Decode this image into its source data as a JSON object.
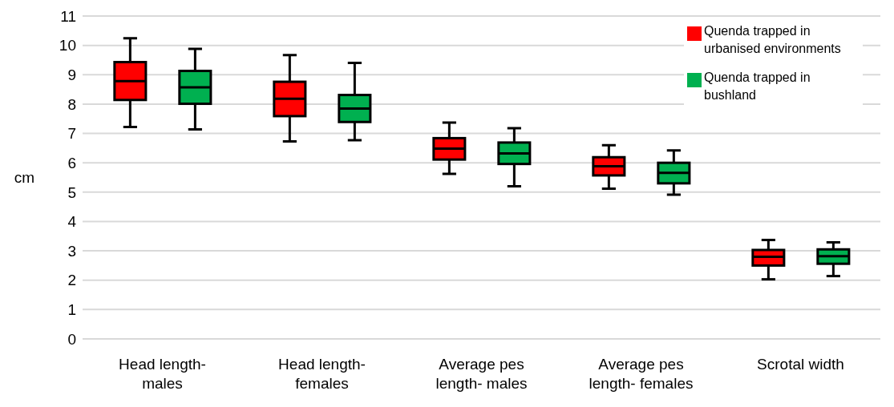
{
  "chart_data": {
    "type": "box",
    "ylabel": "cm",
    "categories": [
      "Head length- males",
      "Head length- females",
      "Average pes length- males",
      "Average pes length- females",
      "Scrotal width"
    ],
    "series": [
      {
        "name": "Quenda trapped in urbanised environments",
        "color": "#ff0000",
        "boxes": [
          {
            "low": 7.22,
            "q1": 8.14,
            "median": 8.78,
            "q3": 9.43,
            "high": 10.24
          },
          {
            "low": 6.73,
            "q1": 7.59,
            "median": 8.18,
            "q3": 8.76,
            "high": 9.67
          },
          {
            "low": 5.62,
            "q1": 6.11,
            "median": 6.48,
            "q3": 6.84,
            "high": 7.37
          },
          {
            "low": 5.12,
            "q1": 5.57,
            "median": 5.88,
            "q3": 6.19,
            "high": 6.6
          },
          {
            "low": 2.03,
            "q1": 2.5,
            "median": 2.8,
            "q3": 3.03,
            "high": 3.37
          }
        ]
      },
      {
        "name": "Quenda trapped in bushland",
        "color": "#00b050",
        "boxes": [
          {
            "low": 7.14,
            "q1": 8.01,
            "median": 8.57,
            "q3": 9.13,
            "high": 9.88
          },
          {
            "low": 6.77,
            "q1": 7.39,
            "median": 7.85,
            "q3": 8.31,
            "high": 9.4
          },
          {
            "low": 5.2,
            "q1": 5.96,
            "median": 6.32,
            "q3": 6.69,
            "high": 7.18
          },
          {
            "low": 4.91,
            "q1": 5.3,
            "median": 5.66,
            "q3": 6.0,
            "high": 6.42
          },
          {
            "low": 2.14,
            "q1": 2.56,
            "median": 2.82,
            "q3": 3.05,
            "high": 3.29
          }
        ]
      }
    ],
    "ylim": [
      0,
      11
    ],
    "yticks": [
      0,
      1,
      2,
      3,
      4,
      5,
      6,
      7,
      8,
      9,
      10,
      11
    ],
    "grid": "y",
    "legend": "top right"
  }
}
